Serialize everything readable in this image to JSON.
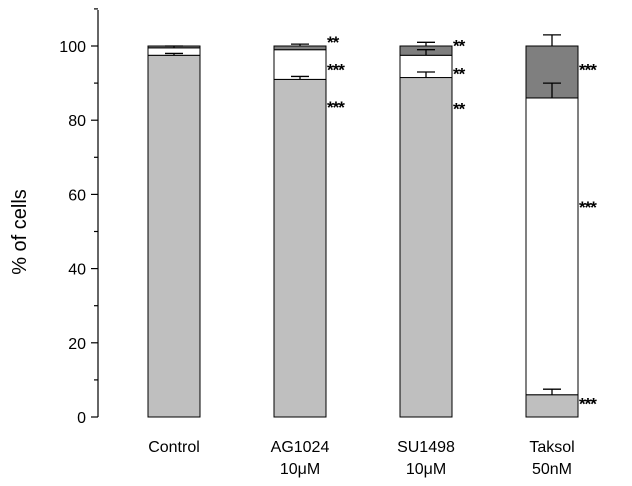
{
  "chart_data": {
    "type": "bar",
    "stacked": true,
    "title": "",
    "xlabel": "",
    "ylabel": "% of cells",
    "ylim": [
      0,
      110
    ],
    "yticks": [
      0,
      20,
      40,
      60,
      80,
      100
    ],
    "grid": false,
    "categories": [
      {
        "line1": "Control",
        "line2": ""
      },
      {
        "line1": "AG1024",
        "line2": "10μM"
      },
      {
        "line1": "SU1498",
        "line2": "10μM"
      },
      {
        "line1": "Taksol",
        "line2": "50nM"
      }
    ],
    "series": [
      {
        "color": "#bfbfbf",
        "values": [
          97.5,
          91,
          91.5,
          6
        ],
        "errors": [
          0.5,
          0.8,
          1.5,
          1.5
        ]
      },
      {
        "color": "#ffffff",
        "values": [
          2,
          8,
          6,
          80
        ],
        "errors": [
          0.5,
          0,
          1.5,
          4
        ]
      },
      {
        "color": "#7f7f7f",
        "values": [
          0.5,
          1,
          2.5,
          14
        ],
        "errors": [
          0,
          0.5,
          1,
          3
        ]
      }
    ],
    "annotations": [
      {
        "category": 1,
        "y": 99.5,
        "text": "**"
      },
      {
        "category": 1,
        "y": 92,
        "text": "***"
      },
      {
        "category": 1,
        "y": 82,
        "text": "***"
      },
      {
        "category": 2,
        "y": 98.5,
        "text": "**"
      },
      {
        "category": 2,
        "y": 91,
        "text": "**"
      },
      {
        "category": 2,
        "y": 81.5,
        "text": "**"
      },
      {
        "category": 3,
        "y": 92,
        "text": "***"
      },
      {
        "category": 3,
        "y": 55,
        "text": "***"
      },
      {
        "category": 3,
        "y": 2,
        "text": "***"
      }
    ]
  }
}
